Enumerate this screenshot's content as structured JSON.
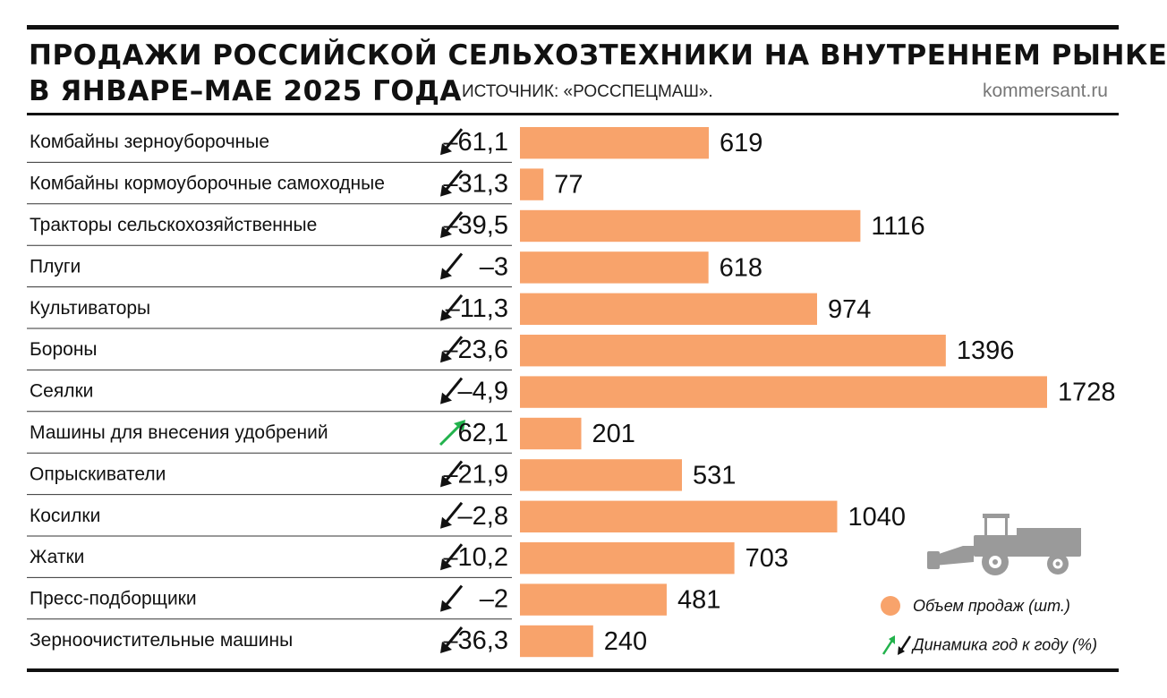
{
  "header": {
    "title_line1": "ПРОДАЖИ РОССИЙСКОЙ СЕЛЬХОЗТЕХНИКИ НА ВНУТРЕННЕМ РЫНКЕ",
    "title_line2": "В ЯНВАРЕ–МАЕ 2025 ГОДА",
    "source": "ИСТОЧНИК: «РОССПЕЦМАШ».",
    "site": "kommersant.ru"
  },
  "legend": {
    "volume_label": "Объем продаж (шт.)",
    "dynamics_label": "Динамика год к году (%)"
  },
  "colors": {
    "bar": "#f8a36b",
    "up_arrow": "#22b24c",
    "down_arrow": "#111111",
    "vehicle": "#9a9a9a"
  },
  "chart_data": {
    "type": "bar",
    "orientation": "horizontal",
    "title": "ПРОДАЖИ РОССИЙСКОЙ СЕЛЬХОЗТЕХНИКИ НА ВНУТРЕННЕМ РЫНКЕ В ЯНВАРЕ–МАЕ 2025 ГОДА",
    "categories": [
      "Комбайны зерноуборочные",
      "Комбайны кормоуборочные самоходные",
      "Тракторы сельскохозяйственные",
      "Плуги",
      "Культиваторы",
      "Бороны",
      "Сеялки",
      "Машины для внесения удобрений",
      "Опрыскиватели",
      "Косилки",
      "Жатки",
      "Пресс-подборщики",
      "Зерноочистительные машины"
    ],
    "series": [
      {
        "name": "Объем продаж (шт.)",
        "values": [
          619,
          77,
          1116,
          618,
          974,
          1396,
          1728,
          201,
          531,
          1040,
          703,
          481,
          240
        ]
      },
      {
        "name": "Динамика год к году (%)",
        "values": [
          -61.1,
          -31.3,
          -39.5,
          -3,
          -11.3,
          -23.6,
          -4.9,
          62.1,
          -21.9,
          -2.8,
          -10.2,
          -2,
          -36.3
        ]
      }
    ],
    "dynamics_labels": [
      "–61,1",
      "–31,3",
      "–39,5",
      "–3",
      "–11,3",
      "–23,6",
      "–4,9",
      "62,1",
      "–21,9",
      "–2,8",
      "–10,2",
      "–2",
      "–36,3"
    ],
    "xlim": [
      0,
      1728
    ],
    "grid": false
  }
}
